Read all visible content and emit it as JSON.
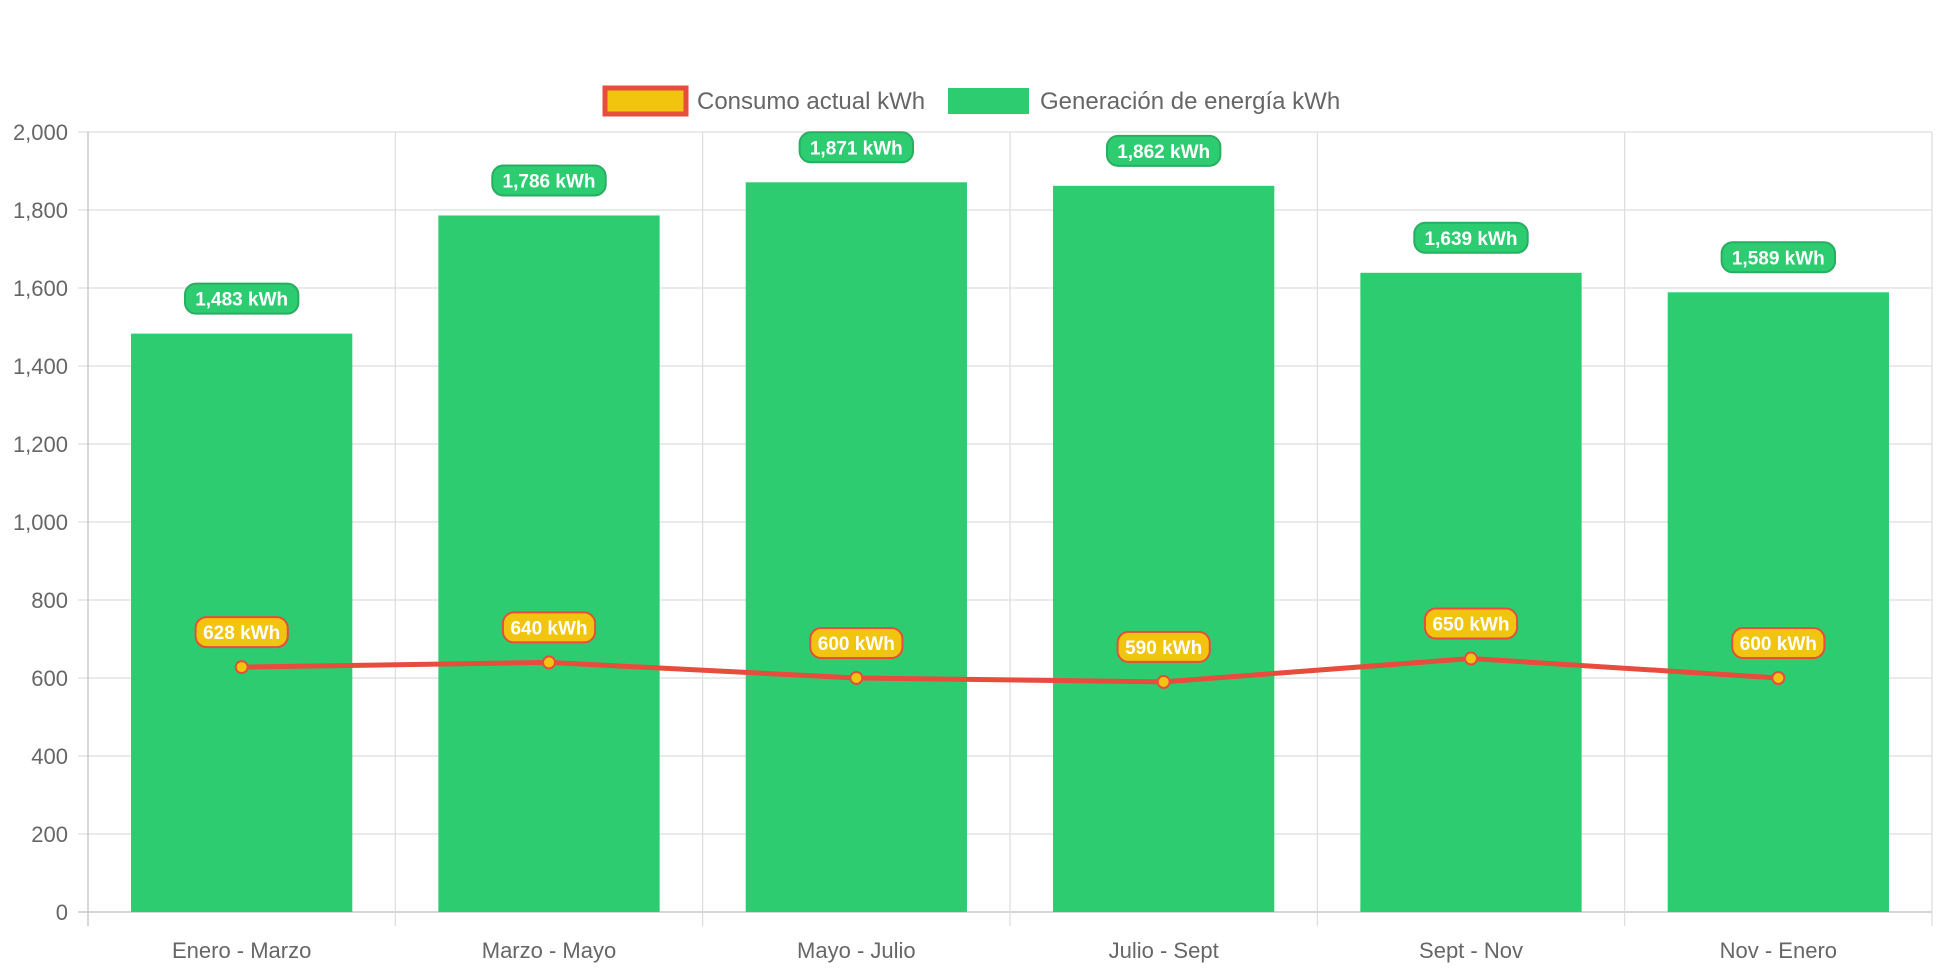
{
  "chart_data": {
    "type": "bar",
    "title": "",
    "xlabel": "",
    "ylabel": "",
    "ylim": [
      0,
      2000
    ],
    "y_ticks": [
      "0",
      "200",
      "400",
      "600",
      "800",
      "1,000",
      "1,200",
      "1,400",
      "1,600",
      "1,800",
      "2,000"
    ],
    "y_tick_values": [
      0,
      200,
      400,
      600,
      800,
      1000,
      1200,
      1400,
      1600,
      1800,
      2000
    ],
    "categories": [
      "Enero - Marzo",
      "Marzo - Mayo",
      "Mayo - Julio",
      "Julio - Sept",
      "Sept - Nov",
      "Nov - Enero"
    ],
    "legend_position": "top-center",
    "grid": true,
    "series": [
      {
        "name": "Consumo actual kWh",
        "type": "line",
        "values": [
          628,
          640,
          600,
          590,
          650,
          600
        ],
        "labels": [
          "628 kWh",
          "640 kWh",
          "600 kWh",
          "590 kWh",
          "650 kWh",
          "600 kWh"
        ],
        "color": "#e74c3c",
        "fill_color": "#f1c40f"
      },
      {
        "name": "Generación de energía kWh",
        "type": "bar",
        "values": [
          1483,
          1786,
          1871,
          1862,
          1639,
          1589
        ],
        "labels": [
          "1,483 kWh",
          "1,786 kWh",
          "1,871 kWh",
          "1,862 kWh",
          "1,639 kWh",
          "1,589 kWh"
        ],
        "color": "#2ecc71",
        "border_color": "#27ae60"
      }
    ]
  }
}
